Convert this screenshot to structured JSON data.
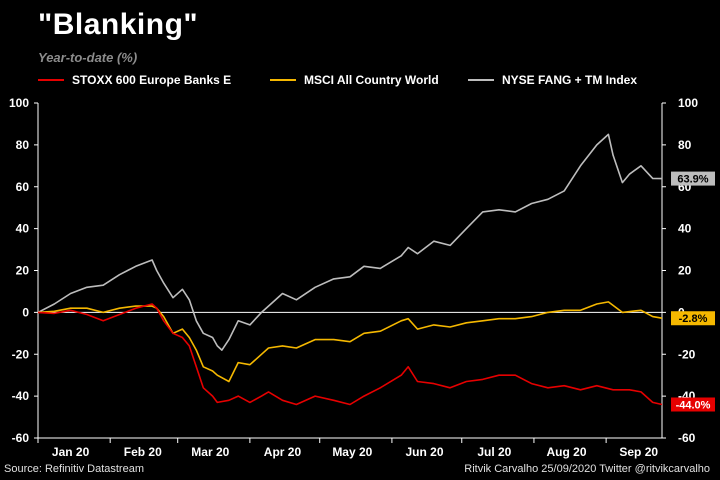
{
  "header": {
    "title": "\"Blanking\"",
    "subtitle": "Year-to-date (%)"
  },
  "footer": {
    "source": "Source: Refinitiv Datastream",
    "credit": "Ritvik Carvalho 25/09/2020 Twitter @ritvikcarvalho"
  },
  "chart_data": {
    "type": "line",
    "title": "\"Blanking\"",
    "subtitle": "Year-to-date (%)",
    "xlabel": "",
    "ylabel": "",
    "x_range": [
      "2020-01-01",
      "2020-09-25"
    ],
    "ylim": [
      -60,
      100
    ],
    "yticks": [
      100,
      80,
      60,
      40,
      20,
      0,
      -20,
      -40,
      -60
    ],
    "y_axes": "both sides",
    "x_tick_labels": [
      "Jan 20",
      "Feb 20",
      "Mar 20",
      "Apr 20",
      "May 20",
      "Jun 20",
      "Jul 20",
      "Aug 20",
      "Sep 20"
    ],
    "zero_line": true,
    "grid": false,
    "legend_position": "top",
    "series": [
      {
        "name": "STOXX 600 Europe Banks E",
        "color": "#e60000",
        "end_label": "-44.0%",
        "points": [
          [
            "2020-01-01",
            0
          ],
          [
            "2020-01-08",
            -0.5
          ],
          [
            "2020-01-15",
            1
          ],
          [
            "2020-01-22",
            -1
          ],
          [
            "2020-01-29",
            -4
          ],
          [
            "2020-02-05",
            -1
          ],
          [
            "2020-02-12",
            2
          ],
          [
            "2020-02-19",
            4
          ],
          [
            "2020-02-21",
            2
          ],
          [
            "2020-02-24",
            -4
          ],
          [
            "2020-02-28",
            -10
          ],
          [
            "2020-03-03",
            -12
          ],
          [
            "2020-03-06",
            -16
          ],
          [
            "2020-03-09",
            -26
          ],
          [
            "2020-03-12",
            -36
          ],
          [
            "2020-03-16",
            -40
          ],
          [
            "2020-03-18",
            -43
          ],
          [
            "2020-03-23",
            -42
          ],
          [
            "2020-03-27",
            -40
          ],
          [
            "2020-04-01",
            -43
          ],
          [
            "2020-04-06",
            -40
          ],
          [
            "2020-04-09",
            -38
          ],
          [
            "2020-04-15",
            -42
          ],
          [
            "2020-04-21",
            -44
          ],
          [
            "2020-04-29",
            -40
          ],
          [
            "2020-05-07",
            -42
          ],
          [
            "2020-05-14",
            -44
          ],
          [
            "2020-05-20",
            -40
          ],
          [
            "2020-05-27",
            -36
          ],
          [
            "2020-06-05",
            -30
          ],
          [
            "2020-06-08",
            -26
          ],
          [
            "2020-06-12",
            -33
          ],
          [
            "2020-06-19",
            -34
          ],
          [
            "2020-06-26",
            -36
          ],
          [
            "2020-07-03",
            -33
          ],
          [
            "2020-07-10",
            -32
          ],
          [
            "2020-07-17",
            -30
          ],
          [
            "2020-07-24",
            -30
          ],
          [
            "2020-07-31",
            -34
          ],
          [
            "2020-08-07",
            -36
          ],
          [
            "2020-08-14",
            -35
          ],
          [
            "2020-08-21",
            -37
          ],
          [
            "2020-08-28",
            -35
          ],
          [
            "2020-09-04",
            -37
          ],
          [
            "2020-09-11",
            -37
          ],
          [
            "2020-09-16",
            -38
          ],
          [
            "2020-09-21",
            -43
          ],
          [
            "2020-09-25",
            -44
          ]
        ]
      },
      {
        "name": "MSCI All Country World",
        "color": "#f5b800",
        "end_label": "-2.8%",
        "points": [
          [
            "2020-01-01",
            0
          ],
          [
            "2020-01-08",
            0.5
          ],
          [
            "2020-01-15",
            2
          ],
          [
            "2020-01-22",
            2
          ],
          [
            "2020-01-29",
            0
          ],
          [
            "2020-02-05",
            2
          ],
          [
            "2020-02-12",
            3
          ],
          [
            "2020-02-19",
            3
          ],
          [
            "2020-02-21",
            2
          ],
          [
            "2020-02-24",
            -2
          ],
          [
            "2020-02-28",
            -10
          ],
          [
            "2020-03-03",
            -8
          ],
          [
            "2020-03-06",
            -12
          ],
          [
            "2020-03-09",
            -18
          ],
          [
            "2020-03-12",
            -26
          ],
          [
            "2020-03-16",
            -28
          ],
          [
            "2020-03-18",
            -30
          ],
          [
            "2020-03-23",
            -33
          ],
          [
            "2020-03-27",
            -24
          ],
          [
            "2020-04-01",
            -25
          ],
          [
            "2020-04-06",
            -20
          ],
          [
            "2020-04-09",
            -17
          ],
          [
            "2020-04-15",
            -16
          ],
          [
            "2020-04-21",
            -17
          ],
          [
            "2020-04-29",
            -13
          ],
          [
            "2020-05-07",
            -13
          ],
          [
            "2020-05-14",
            -14
          ],
          [
            "2020-05-20",
            -10
          ],
          [
            "2020-05-27",
            -9
          ],
          [
            "2020-06-05",
            -4
          ],
          [
            "2020-06-08",
            -3
          ],
          [
            "2020-06-12",
            -8
          ],
          [
            "2020-06-19",
            -6
          ],
          [
            "2020-06-26",
            -7
          ],
          [
            "2020-07-03",
            -5
          ],
          [
            "2020-07-10",
            -4
          ],
          [
            "2020-07-17",
            -3
          ],
          [
            "2020-07-24",
            -3
          ],
          [
            "2020-07-31",
            -2
          ],
          [
            "2020-08-07",
            0
          ],
          [
            "2020-08-14",
            1
          ],
          [
            "2020-08-21",
            1
          ],
          [
            "2020-08-28",
            4
          ],
          [
            "2020-09-02",
            5
          ],
          [
            "2020-09-08",
            0
          ],
          [
            "2020-09-16",
            1
          ],
          [
            "2020-09-21",
            -2
          ],
          [
            "2020-09-25",
            -2.8
          ]
        ]
      },
      {
        "name": "NYSE FANG + TM Index",
        "color": "#bdbdbd",
        "end_label": "63.9%",
        "points": [
          [
            "2020-01-01",
            0
          ],
          [
            "2020-01-08",
            4
          ],
          [
            "2020-01-15",
            9
          ],
          [
            "2020-01-22",
            12
          ],
          [
            "2020-01-29",
            13
          ],
          [
            "2020-02-05",
            18
          ],
          [
            "2020-02-12",
            22
          ],
          [
            "2020-02-19",
            25
          ],
          [
            "2020-02-21",
            20
          ],
          [
            "2020-02-24",
            14
          ],
          [
            "2020-02-28",
            7
          ],
          [
            "2020-03-03",
            11
          ],
          [
            "2020-03-06",
            6
          ],
          [
            "2020-03-09",
            -4
          ],
          [
            "2020-03-12",
            -10
          ],
          [
            "2020-03-16",
            -12
          ],
          [
            "2020-03-18",
            -16
          ],
          [
            "2020-03-20",
            -18
          ],
          [
            "2020-03-23",
            -13
          ],
          [
            "2020-03-27",
            -4
          ],
          [
            "2020-04-01",
            -6
          ],
          [
            "2020-04-06",
            0
          ],
          [
            "2020-04-09",
            3
          ],
          [
            "2020-04-15",
            9
          ],
          [
            "2020-04-21",
            6
          ],
          [
            "2020-04-29",
            12
          ],
          [
            "2020-05-07",
            16
          ],
          [
            "2020-05-14",
            17
          ],
          [
            "2020-05-20",
            22
          ],
          [
            "2020-05-27",
            21
          ],
          [
            "2020-06-05",
            27
          ],
          [
            "2020-06-08",
            31
          ],
          [
            "2020-06-12",
            28
          ],
          [
            "2020-06-19",
            34
          ],
          [
            "2020-06-26",
            32
          ],
          [
            "2020-07-03",
            40
          ],
          [
            "2020-07-10",
            48
          ],
          [
            "2020-07-17",
            49
          ],
          [
            "2020-07-24",
            48
          ],
          [
            "2020-07-31",
            52
          ],
          [
            "2020-08-07",
            54
          ],
          [
            "2020-08-14",
            58
          ],
          [
            "2020-08-21",
            70
          ],
          [
            "2020-08-28",
            80
          ],
          [
            "2020-09-02",
            85
          ],
          [
            "2020-09-04",
            75
          ],
          [
            "2020-09-08",
            62
          ],
          [
            "2020-09-11",
            66
          ],
          [
            "2020-09-16",
            70
          ],
          [
            "2020-09-21",
            64
          ],
          [
            "2020-09-25",
            63.9
          ]
        ]
      }
    ]
  }
}
